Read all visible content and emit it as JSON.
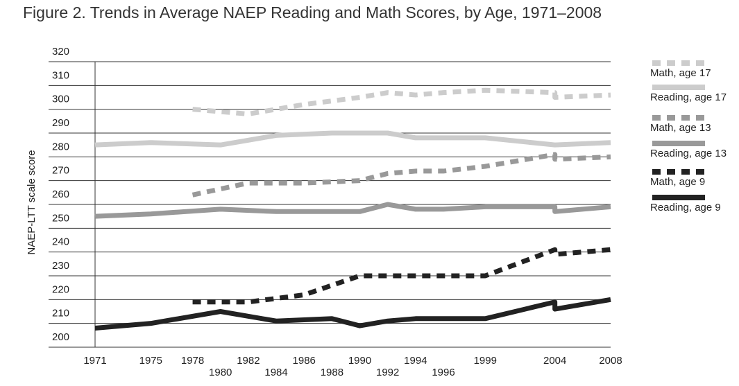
{
  "chart_data": {
    "type": "line",
    "title": "Figure 2. Trends in Average NAEP Reading and Math Scores, by Age, 1971–2008",
    "y_label": "NAEP-LTT scale score",
    "xlim": [
      1971,
      2008
    ],
    "xticks": [
      1971,
      1975,
      1978,
      1980,
      1982,
      1984,
      1986,
      1988,
      1990,
      1992,
      1994,
      1996,
      1999,
      2004,
      2008
    ],
    "ylim": [
      200,
      320
    ],
    "yticks": [
      200,
      210,
      220,
      230,
      240,
      250,
      260,
      270,
      280,
      290,
      300,
      310,
      320
    ],
    "grid": true,
    "legend": "right",
    "series": [
      {
        "name": "Math, age 17",
        "color": "#cccccc",
        "dashed": true,
        "x": [
          1978,
          1982,
          1986,
          1990,
          1992,
          1994,
          1996,
          1999,
          2004,
          2004,
          2008
        ],
        "values": [
          300,
          298,
          302,
          305,
          307,
          306,
          307,
          308,
          307,
          305,
          306
        ]
      },
      {
        "name": "Reading, age 17",
        "color": "#cccccc",
        "dashed": false,
        "x": [
          1971,
          1975,
          1980,
          1984,
          1988,
          1990,
          1992,
          1994,
          1996,
          1999,
          2004,
          2004,
          2008
        ],
        "values": [
          285,
          286,
          285,
          289,
          290,
          290,
          290,
          288,
          288,
          288,
          285,
          285,
          286
        ]
      },
      {
        "name": "Math, age 13",
        "color": "#999999",
        "dashed": true,
        "x": [
          1978,
          1982,
          1986,
          1990,
          1992,
          1994,
          1996,
          1999,
          2004,
          2004,
          2008
        ],
        "values": [
          264,
          269,
          269,
          270,
          273,
          274,
          274,
          276,
          281,
          279,
          280
        ]
      },
      {
        "name": "Reading, age 13",
        "color": "#999999",
        "dashed": false,
        "x": [
          1971,
          1975,
          1980,
          1984,
          1988,
          1990,
          1992,
          1994,
          1996,
          1999,
          2004,
          2004,
          2008
        ],
        "values": [
          255,
          256,
          258,
          257,
          257,
          257,
          260,
          258,
          258,
          259,
          259,
          257,
          259
        ]
      },
      {
        "name": "Math, age 9",
        "color": "#222222",
        "dashed": true,
        "x": [
          1978,
          1982,
          1986,
          1990,
          1992,
          1994,
          1996,
          1999,
          2004,
          2004,
          2008
        ],
        "values": [
          219,
          219,
          222,
          230,
          230,
          230,
          230,
          230,
          241,
          239,
          241
        ]
      },
      {
        "name": "Reading, age 9",
        "color": "#222222",
        "dashed": false,
        "x": [
          1971,
          1975,
          1980,
          1984,
          1988,
          1990,
          1992,
          1994,
          1996,
          1999,
          2004,
          2004,
          2008
        ],
        "values": [
          208,
          210,
          215,
          211,
          212,
          209,
          211,
          212,
          212,
          212,
          219,
          216,
          220
        ]
      }
    ]
  }
}
